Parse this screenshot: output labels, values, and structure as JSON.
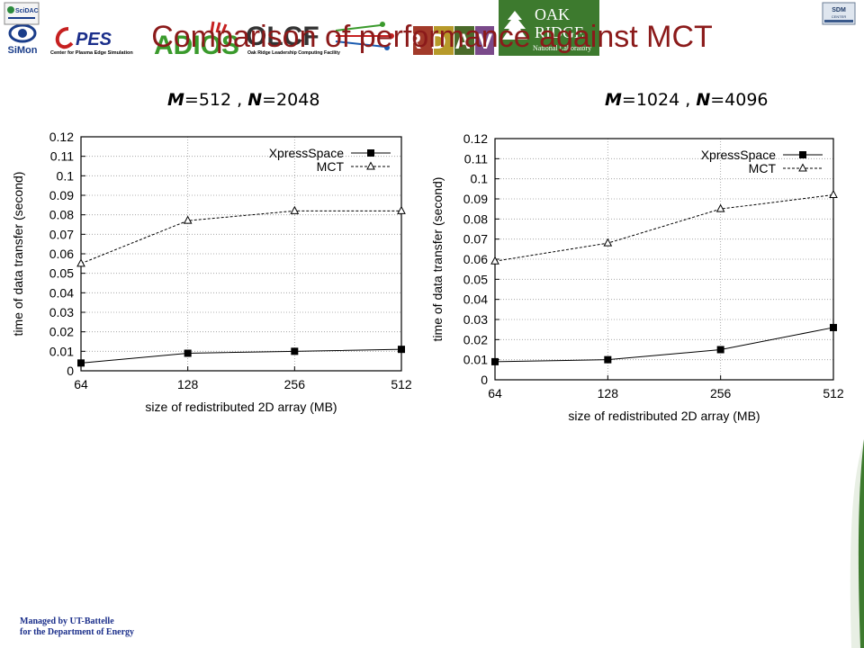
{
  "title": "Comparison of performance against MCT",
  "logos": {
    "scidac": "SciDAC",
    "sdm": "SDM",
    "sdm_sub": "CENTER",
    "simon": "SiMon",
    "cpes": "PES",
    "cpes_sub": "Center for Plasma Edge Simulation",
    "adios": "ADIOS",
    "olcf": "OLCF",
    "olcf_sub": "Oak Ridge Leadership Computing Facility",
    "rdav": "RDAV",
    "ornl_oak": "OAK",
    "ornl_ridge": "RIDGE",
    "ornl_sub": "National Laboratory"
  },
  "footer": {
    "line1": "Managed by UT-Battelle",
    "line2": "for the Department of Energy"
  },
  "colors": {
    "title": "#8b1a1a",
    "footer": "#1a2e8a",
    "ornl_green": "#3d7a2e"
  },
  "chart_data": [
    {
      "type": "line",
      "subtitle": {
        "m_label": "M",
        "m_value": "=512 , ",
        "n_label": "N",
        "n_value": "=2048"
      },
      "categories": [
        "64",
        "128",
        "256",
        "512"
      ],
      "xlabel": "size of redistributed 2D array (MB)",
      "ylabel": "time of data transfer (second)",
      "ylim": [
        0,
        0.12
      ],
      "yticks": [
        "0",
        "0.01",
        "0.02",
        "0.03",
        "0.04",
        "0.05",
        "0.06",
        "0.07",
        "0.08",
        "0.09",
        "0.1",
        "0.11",
        "0.12"
      ],
      "grid": true,
      "legend": "top-right",
      "series": [
        {
          "name": "XpressSpace",
          "marker": "filled-square",
          "dash": "solid",
          "values": [
            0.004,
            0.009,
            0.01,
            0.011
          ]
        },
        {
          "name": "MCT",
          "marker": "open-triangle",
          "dash": "dashed",
          "values": [
            0.055,
            0.077,
            0.082,
            0.082
          ]
        }
      ]
    },
    {
      "type": "line",
      "subtitle": {
        "m_label": "M",
        "m_value": "=1024 , ",
        "n_label": "N",
        "n_value": "=4096"
      },
      "categories": [
        "64",
        "128",
        "256",
        "512"
      ],
      "xlabel": "size of redistributed 2D array (MB)",
      "ylabel": "time of data transfer (second)",
      "ylim": [
        0,
        0.12
      ],
      "yticks": [
        "0",
        "0.01",
        "0.02",
        "0.03",
        "0.04",
        "0.05",
        "0.06",
        "0.07",
        "0.08",
        "0.09",
        "0.1",
        "0.11",
        "0.12"
      ],
      "grid": true,
      "legend": "top-right",
      "series": [
        {
          "name": "XpressSpace",
          "marker": "filled-square",
          "dash": "solid",
          "values": [
            0.009,
            0.01,
            0.015,
            0.026
          ]
        },
        {
          "name": "MCT",
          "marker": "open-triangle",
          "dash": "dashed",
          "values": [
            0.059,
            0.068,
            0.085,
            0.092
          ]
        }
      ]
    }
  ]
}
